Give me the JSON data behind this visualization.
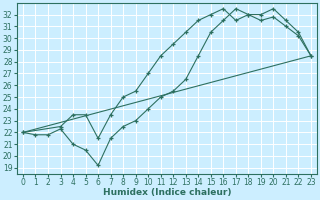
{
  "xlabel": "Humidex (Indice chaleur)",
  "bg_color": "#cceeff",
  "grid_color": "#ffffff",
  "line_color": "#2d7060",
  "xlim": [
    -0.5,
    23.5
  ],
  "ylim": [
    18.5,
    33.0
  ],
  "xticks": [
    0,
    1,
    2,
    3,
    4,
    5,
    6,
    7,
    8,
    9,
    10,
    11,
    12,
    13,
    14,
    15,
    16,
    17,
    18,
    19,
    20,
    21,
    22,
    23
  ],
  "yticks": [
    19,
    20,
    21,
    22,
    23,
    24,
    25,
    26,
    27,
    28,
    29,
    30,
    31,
    32
  ],
  "line1_x": [
    0,
    1,
    2,
    3,
    4,
    5,
    6,
    7,
    8,
    9,
    10,
    11,
    12,
    13,
    14,
    15,
    16,
    17,
    18,
    19,
    20,
    21,
    22,
    23
  ],
  "line1_y": [
    22.0,
    21.8,
    21.8,
    22.3,
    21.0,
    20.5,
    19.2,
    21.5,
    22.5,
    23.0,
    24.0,
    25.0,
    25.5,
    26.5,
    28.5,
    30.5,
    31.5,
    32.5,
    32.0,
    31.5,
    31.8,
    31.0,
    30.2,
    28.5
  ],
  "line2_x": [
    0,
    3,
    4,
    5,
    6,
    7,
    8,
    9,
    10,
    11,
    12,
    13,
    14,
    15,
    16,
    17,
    18,
    19,
    20,
    21,
    22,
    23
  ],
  "line2_y": [
    22.0,
    22.5,
    23.5,
    23.5,
    21.5,
    23.5,
    25.0,
    25.5,
    27.0,
    28.5,
    29.5,
    30.5,
    31.5,
    32.0,
    32.5,
    31.5,
    32.0,
    32.0,
    32.5,
    31.5,
    30.5,
    28.5
  ],
  "line3_x": [
    0,
    23
  ],
  "line3_y": [
    22.0,
    28.5
  ],
  "tick_fontsize": 5.5,
  "xlabel_fontsize": 6.5
}
